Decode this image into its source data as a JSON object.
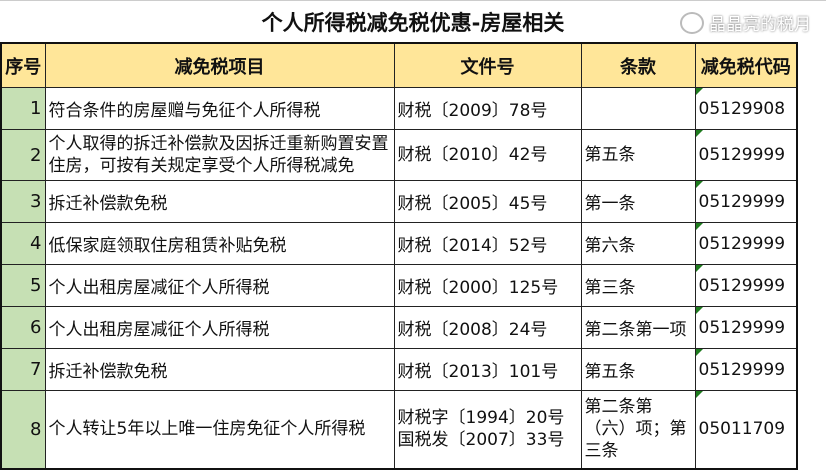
{
  "title": "个人所得税减免税优惠-房屋相关",
  "headers": [
    "序号",
    "减免税项目",
    "文件号",
    "条款",
    "减免税代码"
  ],
  "rows": [
    {
      "no": "1",
      "item": "符合条件的房屋赠与免征个人所得税",
      "doc": "财税〔2009〕78号",
      "clause": "",
      "code": "05129908"
    },
    {
      "no": "2",
      "item": "个人取得的拆迁补偿款及因拆迁重新购置安置住房，可按有关规定享受个人所得税减免",
      "doc": "财税〔2010〕42号",
      "clause": "第五条",
      "code": "05129999"
    },
    {
      "no": "3",
      "item": "拆迁补偿款免税",
      "doc": "财税〔2005〕45号",
      "clause": "第一条",
      "code": "05129999"
    },
    {
      "no": "4",
      "item": "低保家庭领取住房租赁补贴免税",
      "doc": "财税〔2014〕52号",
      "clause": "第六条",
      "code": "05129999"
    },
    {
      "no": "5",
      "item": "个人出租房屋减征个人所得税",
      "doc": "财税〔2000〕125号",
      "clause": "第三条",
      "code": "05129999"
    },
    {
      "no": "6",
      "item": "个人出租房屋减征个人所得税",
      "doc": "财税〔2008〕24号",
      "clause": "第二条第一项",
      "code": "05129999"
    },
    {
      "no": "7",
      "item": "拆迁补偿款免税",
      "doc": "财税〔2013〕101号",
      "clause": "第五条",
      "code": "05129999"
    },
    {
      "no": "8",
      "item": "个人转让5年以上唯一住房免征个人所得税",
      "doc": "财税字〔1994〕20号 国税发〔2007〕33号",
      "clause": "第二条第（六）项；第三条",
      "code": "05011709"
    }
  ],
  "watermark": "晶晶亮的税月",
  "colors": {
    "header_bg": "#ffe699",
    "index_bg": "#c6e0b4",
    "marker": "#1e7b1e"
  }
}
